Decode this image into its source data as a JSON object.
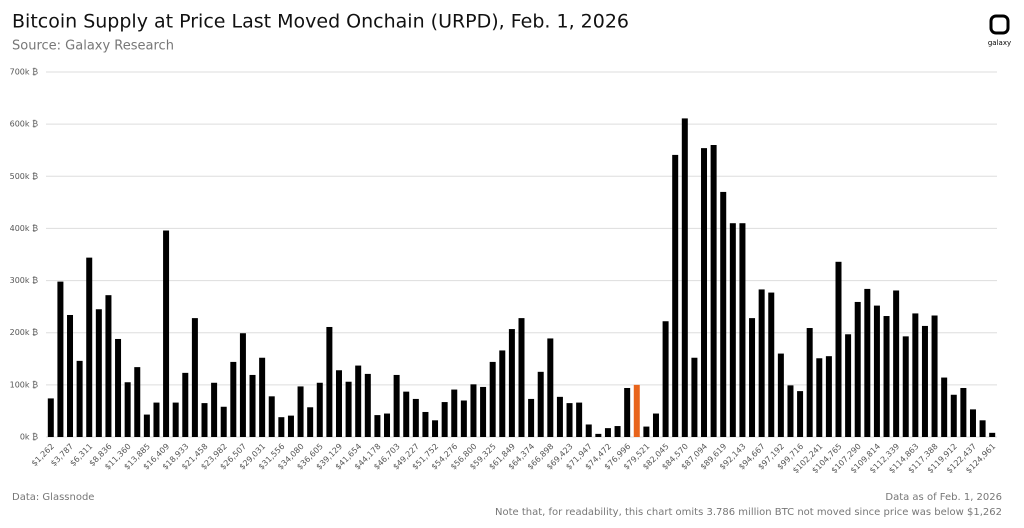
{
  "chart_data": {
    "type": "bar",
    "title": "Bitcoin Supply at Price Last Moved Onchain (URPD), Feb. 1, 2026",
    "subtitle": "Source: Galaxy Research",
    "source": "Data: Glassnode",
    "date_note": "Data as of Feb. 1, 2026",
    "footnote": "Note that, for readability, this chart omits 3.786 million BTC not moved since price was below $1,262",
    "logo": "galaxy",
    "categories": [
      "$1,262",
      null,
      "$3,787",
      null,
      "$6,311",
      null,
      "$8,836",
      null,
      "$11,360",
      null,
      "$13,885",
      null,
      "$16,409",
      null,
      "$18,933",
      null,
      "$21,458",
      null,
      "$23,982",
      null,
      "$26,507",
      null,
      "$29,031",
      null,
      "$31,556",
      null,
      "$34,080",
      null,
      "$36,605",
      null,
      "$39,129",
      null,
      "$41,654",
      null,
      "$44,178",
      null,
      "$46,703",
      null,
      "$49,227",
      null,
      "$51,752",
      null,
      "$54,276",
      null,
      "$56,800",
      null,
      "$59,325",
      null,
      "$61,849",
      null,
      "$64,374",
      null,
      "$66,898",
      null,
      "$69,423",
      null,
      "$71,947",
      null,
      "$74,472",
      null,
      "$76,996",
      null,
      "$79,521",
      null,
      "$82,045",
      null,
      "$84,570",
      null,
      "$87,094",
      null,
      "$89,619",
      null,
      "$92,143",
      null,
      "$94,667",
      null,
      "$97,192",
      null,
      "$99,716",
      null,
      "$102,241",
      null,
      "$104,765",
      null,
      "$107,290",
      null,
      "$109,814",
      null,
      "$112,339",
      null,
      "$114,863",
      null,
      "$117,388",
      null,
      "$119,912",
      null,
      "$122,437",
      null,
      "$124,961"
    ],
    "values": [
      74000,
      298000,
      234000,
      146000,
      344000,
      245000,
      272000,
      188000,
      105000,
      134000,
      43000,
      66000,
      396000,
      66000,
      123000,
      228000,
      65000,
      104000,
      58000,
      144000,
      199000,
      119000,
      152000,
      78000,
      38000,
      41000,
      97000,
      57000,
      104000,
      211000,
      128000,
      106000,
      137000,
      121000,
      42000,
      45000,
      119000,
      87000,
      73000,
      48000,
      32000,
      67000,
      91000,
      70000,
      101000,
      96000,
      144000,
      166000,
      207000,
      228000,
      73000,
      125000,
      189000,
      77000,
      65000,
      66000,
      24000,
      6000,
      17000,
      21000,
      94000,
      100000,
      20000,
      45000,
      222000,
      541000,
      611000,
      152000,
      554000,
      560000,
      470000,
      410000,
      410000,
      228000,
      283000,
      277000,
      160000,
      99000,
      88000,
      209000,
      151000,
      155000,
      336000,
      197000,
      259000,
      284000,
      252000,
      232000,
      281000,
      193000,
      237000,
      213000,
      233000,
      114000,
      81000,
      94000,
      53000,
      32000,
      8000
    ],
    "colors": [
      "#000000",
      "#000000",
      "#000000",
      "#000000",
      "#000000",
      "#000000",
      "#000000",
      "#000000",
      "#000000",
      "#000000",
      "#000000",
      "#000000",
      "#000000",
      "#000000",
      "#000000",
      "#000000",
      "#000000",
      "#000000",
      "#000000",
      "#000000",
      "#000000",
      "#000000",
      "#000000",
      "#000000",
      "#000000",
      "#000000",
      "#000000",
      "#000000",
      "#000000",
      "#000000",
      "#000000",
      "#000000",
      "#000000",
      "#000000",
      "#000000",
      "#000000",
      "#000000",
      "#000000",
      "#000000",
      "#000000",
      "#000000",
      "#000000",
      "#000000",
      "#000000",
      "#000000",
      "#000000",
      "#000000",
      "#000000",
      "#000000",
      "#000000",
      "#000000",
      "#000000",
      "#000000",
      "#000000",
      "#000000",
      "#000000",
      "#000000",
      "#000000",
      "#000000",
      "#000000",
      "#000000",
      "#e8641b",
      "#000000",
      "#000000",
      "#000000",
      "#000000",
      "#000000",
      "#000000",
      "#000000",
      "#000000",
      "#000000",
      "#000000",
      "#000000",
      "#000000",
      "#000000",
      "#000000",
      "#000000",
      "#000000",
      "#000000",
      "#000000",
      "#000000",
      "#000000",
      "#000000",
      "#000000",
      "#000000",
      "#000000",
      "#000000",
      "#000000",
      "#000000",
      "#000000",
      "#000000",
      "#000000",
      "#000000",
      "#000000",
      "#000000",
      "#000000",
      "#000000",
      "#000000",
      "#000000"
    ],
    "ylim": [
      0,
      700000
    ],
    "yticks": [
      {
        "value": 0,
        "label": "0k ₿"
      },
      {
        "value": 100000,
        "label": "100k ₿"
      },
      {
        "value": 200000,
        "label": "200k ₿"
      },
      {
        "value": 300000,
        "label": "300k ₿"
      },
      {
        "value": 400000,
        "label": "400k ₿"
      },
      {
        "value": 500000,
        "label": "500k ₿"
      },
      {
        "value": 600000,
        "label": "600k ₿"
      },
      {
        "value": 700000,
        "label": "700k ₿"
      }
    ],
    "grid": true
  }
}
